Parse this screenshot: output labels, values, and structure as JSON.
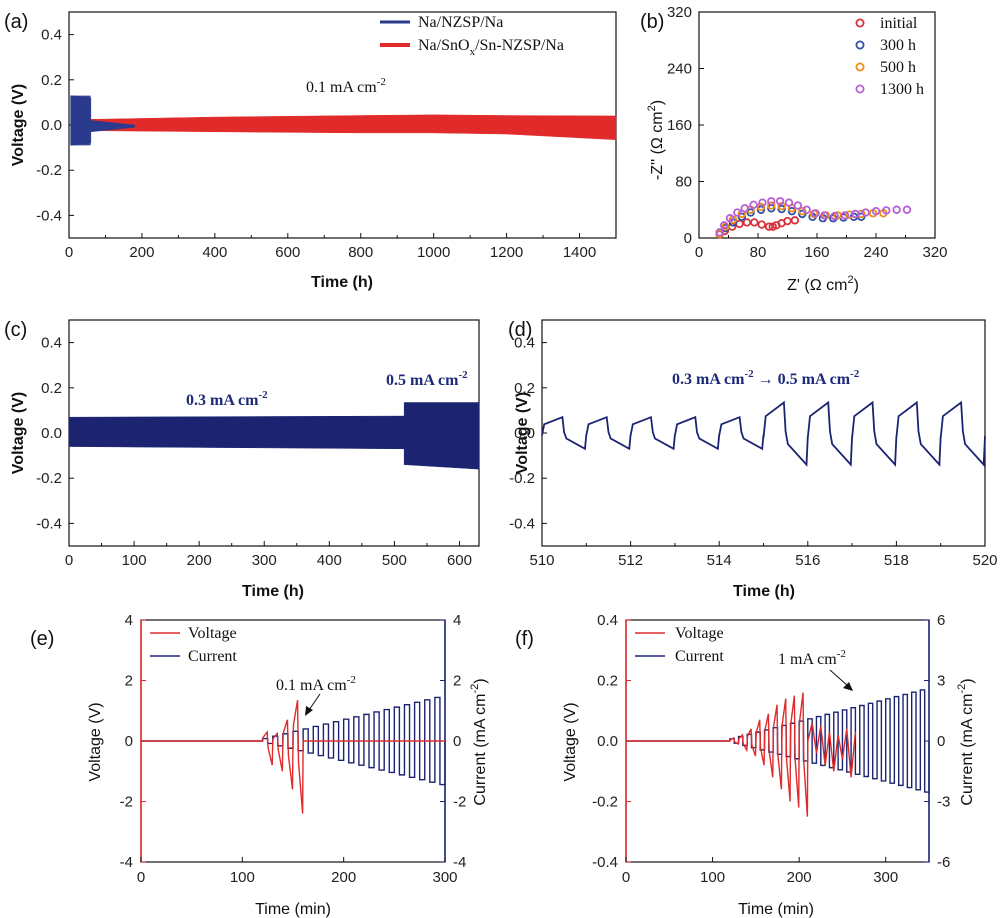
{
  "colors": {
    "blue": "#2a3a8c",
    "navy": "#1c2472",
    "red": "#e12a2a",
    "circle_red": "#d6333a",
    "circle_blue": "#2f51a6",
    "circle_orange": "#f08c1a",
    "circle_purple": "#b65fd6"
  },
  "chart_data": [
    {
      "id": "a",
      "panel_label": "(a)",
      "type": "line",
      "xlabel": "Time (h)",
      "ylabel": "Voltage (V)",
      "xlim": [
        0,
        1500
      ],
      "ylim": [
        -0.5,
        0.5
      ],
      "xticks": [
        "0",
        "200",
        "400",
        "600",
        "800",
        "1000",
        "1200",
        "1400"
      ],
      "yticks": [
        "-0.4",
        "-0.2",
        "0.0",
        "0.2",
        "0.4"
      ],
      "annotation": "0.1 mA cm",
      "annotation_sup": "-2",
      "series": [
        {
          "name": "Na/NZSP/Na",
          "legend_text": "Na/NZSP/Na",
          "color": "#2a3a8c",
          "envelope": {
            "x": [
              5,
              60
            ],
            "upper": [
              0.13,
              0.12
            ],
            "lower": [
              -0.09,
              -0.08
            ]
          },
          "tail": {
            "x": [
              60,
              180
            ],
            "upper": [
              0.02,
              0.0
            ],
            "lower": [
              -0.03,
              -0.01
            ]
          }
        },
        {
          "name": "Na/SnOx/Sn-NZSP/Na",
          "legend_text": "Na/SnO",
          "legend_sub": "x",
          "legend_tail": "/Sn-NZSP/Na",
          "color": "#e12a2a",
          "envelope": {
            "x": [
              60,
              400,
              800,
              1000,
              1200,
              1500
            ],
            "upper": [
              0.025,
              0.035,
              0.042,
              0.045,
              0.042,
              0.04
            ],
            "lower": [
              -0.025,
              -0.03,
              -0.035,
              -0.035,
              -0.04,
              -0.065
            ]
          }
        }
      ]
    },
    {
      "id": "b",
      "panel_label": "(b)",
      "type": "scatter",
      "xlabel": "Z' (Ω cm",
      "xlabel_sup": "2",
      "xlabel_tail": ")",
      "ylabel": "-Z'' (Ω cm",
      "ylabel_sup": "2",
      "ylabel_tail": ")",
      "xlim": [
        0,
        320
      ],
      "ylim": [
        0,
        320
      ],
      "xticks": [
        "0",
        "80",
        "160",
        "240",
        "320"
      ],
      "yticks": [
        "0",
        "80",
        "160",
        "240",
        "320"
      ],
      "series": [
        {
          "name": "initial",
          "color": "#d6333a",
          "x": [
            28,
            35,
            45,
            55,
            65,
            75,
            85,
            95,
            100,
            105,
            112,
            120,
            130
          ],
          "y": [
            5,
            10,
            16,
            20,
            22,
            22,
            19,
            16,
            16,
            18,
            21,
            24,
            25
          ]
        },
        {
          "name": "300 h",
          "color": "#2f51a6",
          "x": [
            28,
            36,
            46,
            58,
            70,
            84,
            98,
            112,
            126,
            140,
            154,
            168,
            182,
            196,
            210,
            220
          ],
          "y": [
            6,
            14,
            22,
            30,
            36,
            40,
            42,
            41,
            38,
            34,
            30,
            28,
            28,
            29,
            30,
            30
          ]
        },
        {
          "name": "500 h",
          "color": "#f08c1a",
          "x": [
            28,
            36,
            46,
            58,
            70,
            84,
            98,
            112,
            126,
            140,
            156,
            172,
            188,
            204,
            220,
            236,
            250
          ],
          "y": [
            6,
            16,
            26,
            34,
            40,
            44,
            46,
            45,
            42,
            38,
            34,
            32,
            32,
            33,
            34,
            35,
            35
          ]
        },
        {
          "name": "1300 h",
          "color": "#b65fd6",
          "x": [
            28,
            34,
            42,
            52,
            62,
            74,
            86,
            98,
            110,
            122,
            134,
            146,
            158,
            170,
            184,
            198,
            212,
            226,
            240,
            254,
            268,
            282
          ],
          "y": [
            8,
            18,
            28,
            36,
            42,
            47,
            50,
            52,
            52,
            50,
            46,
            40,
            35,
            32,
            31,
            32,
            34,
            36,
            38,
            39,
            40,
            40
          ]
        }
      ]
    },
    {
      "id": "c",
      "panel_label": "(c)",
      "type": "line",
      "xlabel": "Time (h)",
      "ylabel": "Voltage (V)",
      "xlim": [
        0,
        630
      ],
      "ylim": [
        -0.5,
        0.5
      ],
      "xticks": [
        "0",
        "100",
        "200",
        "300",
        "400",
        "500",
        "600"
      ],
      "yticks": [
        "-0.4",
        "-0.2",
        "0.0",
        "0.2",
        "0.4"
      ],
      "annotation_1": "0.3 mA cm",
      "annotation_1_sup": "-2",
      "annotation_2": "0.5 mA cm",
      "annotation_2_sup": "-2",
      "segments": [
        {
          "x": [
            0,
            515
          ],
          "upper": [
            0.07,
            0.075
          ],
          "lower": [
            -0.06,
            -0.07
          ]
        },
        {
          "x": [
            515,
            630
          ],
          "upper": [
            0.135,
            0.135
          ],
          "lower": [
            -0.14,
            -0.16
          ]
        }
      ]
    },
    {
      "id": "d",
      "panel_label": "(d)",
      "type": "line",
      "xlabel": "Time (h)",
      "ylabel": "Voltage (V)",
      "xlim": [
        510,
        520
      ],
      "ylim": [
        -0.5,
        0.5
      ],
      "xticks": [
        "510",
        "512",
        "514",
        "516",
        "518",
        "520"
      ],
      "yticks": [
        "-0.4",
        "-0.2",
        "0.0",
        "0.2",
        "0.4"
      ],
      "annotation": "0.3 mA cm",
      "annotation_sup": "-2",
      "annotation_mid": " → 0.5 mA cm",
      "annotation_sup2": "-2",
      "cycles_low": {
        "start": 510,
        "end": 515,
        "period": 1.0,
        "amp_hi": 0.07,
        "amp_lo": -0.07
      },
      "cycles_high": {
        "start": 515,
        "end": 520,
        "period": 1.0,
        "amp_hi": 0.135,
        "amp_lo": -0.14
      }
    },
    {
      "id": "e",
      "panel_label": "(e)",
      "type": "line",
      "xlabel": "Time (min)",
      "ylabel": "Voltage (V)",
      "ylabel2": "Current (mA cm",
      "ylabel2_sup": "-2",
      "ylabel2_tail": ")",
      "xlim": [
        0,
        300
      ],
      "ylim": [
        -4,
        4
      ],
      "y2lim": [
        -4,
        4
      ],
      "xticks": [
        "0",
        "100",
        "200",
        "300"
      ],
      "yticks": [
        "-4",
        "-2",
        "0",
        "2",
        "4"
      ],
      "y2ticks": [
        "-4",
        "-2",
        "0",
        "2",
        "4"
      ],
      "annotation": "0.1 mA cm",
      "annotation_sup": "-2",
      "legend": [
        "Voltage",
        "Current"
      ],
      "current_steps": {
        "start": 120,
        "step_min": 10,
        "increment": 0.1,
        "count": 18
      },
      "voltage_peaks": [
        0.3,
        -0.8,
        0.25,
        -1.0,
        0.7,
        -1.6,
        1.35,
        -2.4
      ]
    },
    {
      "id": "f",
      "panel_label": "(f)",
      "type": "line",
      "xlabel": "Time (min)",
      "ylabel": "Voltage (V)",
      "ylabel2": "Current (mA cm",
      "ylabel2_sup": "-2",
      "ylabel2_tail": ")",
      "xlim": [
        0,
        350
      ],
      "ylim": [
        -0.4,
        0.4
      ],
      "y2lim": [
        -6,
        6
      ],
      "xticks": [
        "0",
        "100",
        "200",
        "300"
      ],
      "yticks": [
        "-0.4",
        "-0.2",
        "0.0",
        "0.2",
        "0.4"
      ],
      "y2ticks": [
        "-6",
        "-3",
        "0",
        "3",
        "6"
      ],
      "annotation": "1 mA cm",
      "annotation_sup": "-2",
      "legend": [
        "Voltage",
        "Current"
      ],
      "current_steps": {
        "start": 120,
        "step_min": 10,
        "increment": 0.1,
        "count": 23
      },
      "voltage_peaks": [
        0.01,
        -0.01,
        0.02,
        -0.03,
        0.04,
        -0.05,
        0.07,
        -0.08,
        0.09,
        -0.12,
        0.12,
        -0.16,
        0.14,
        -0.2,
        0.15,
        -0.22,
        0.16,
        -0.25
      ]
    }
  ]
}
